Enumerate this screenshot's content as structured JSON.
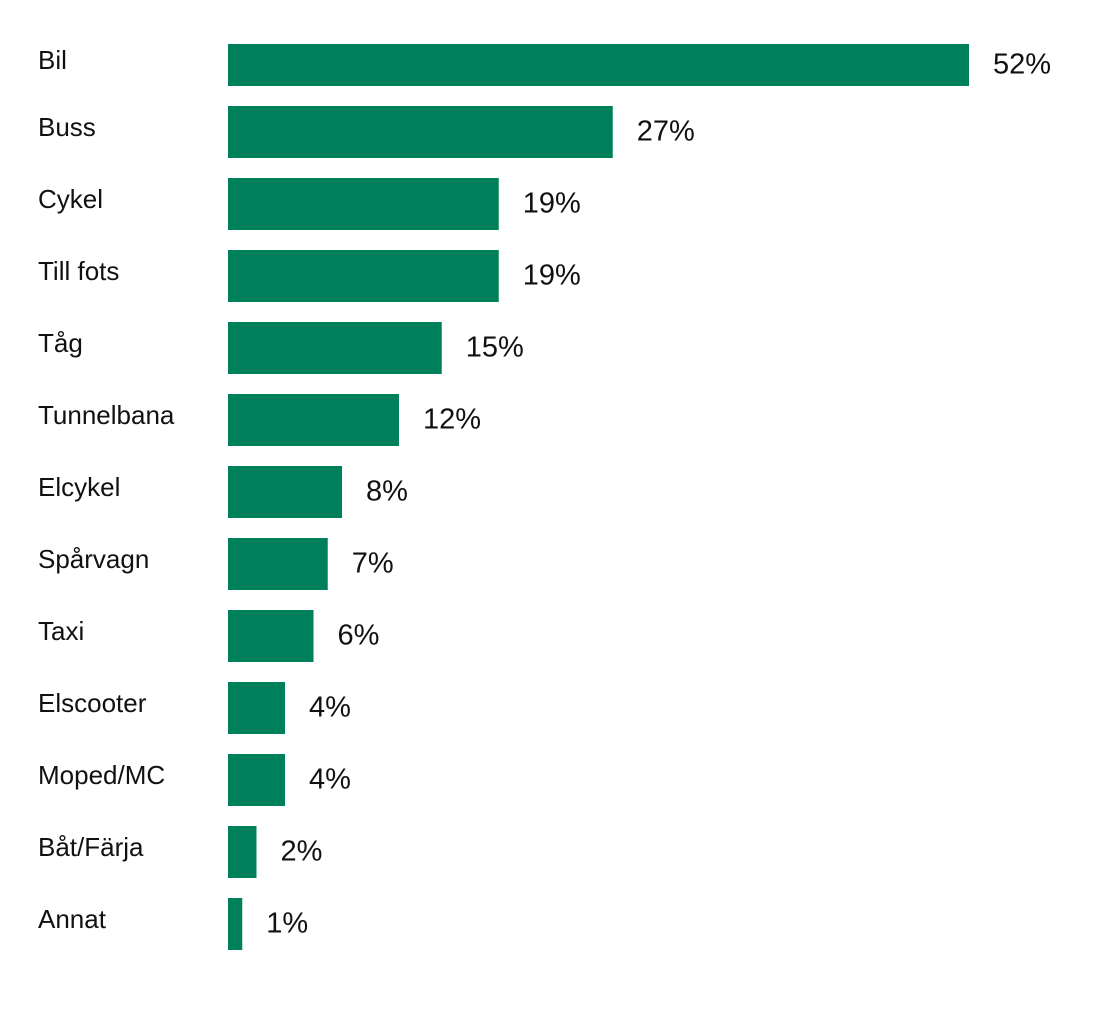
{
  "chart_data": {
    "type": "bar",
    "orientation": "horizontal",
    "categories": [
      "Bil",
      "Buss",
      "Cykel",
      "Till fots",
      "Tåg",
      "Tunnelbana",
      "Elcykel",
      "Spårvagn",
      "Taxi",
      "Elscooter",
      "Moped/MC",
      "Båt/Färja",
      "Annat"
    ],
    "values": [
      52,
      27,
      19,
      19,
      15,
      12,
      8,
      7,
      6,
      4,
      4,
      2,
      1
    ],
    "value_labels": [
      "52%",
      "27%",
      "19%",
      "19%",
      "15%",
      "12%",
      "8%",
      "7%",
      "6%",
      "4%",
      "4%",
      "2%",
      "1%"
    ],
    "unit": "%",
    "title": "",
    "xlabel": "",
    "ylabel": "",
    "grid": false,
    "bar_color": "#00805A"
  }
}
